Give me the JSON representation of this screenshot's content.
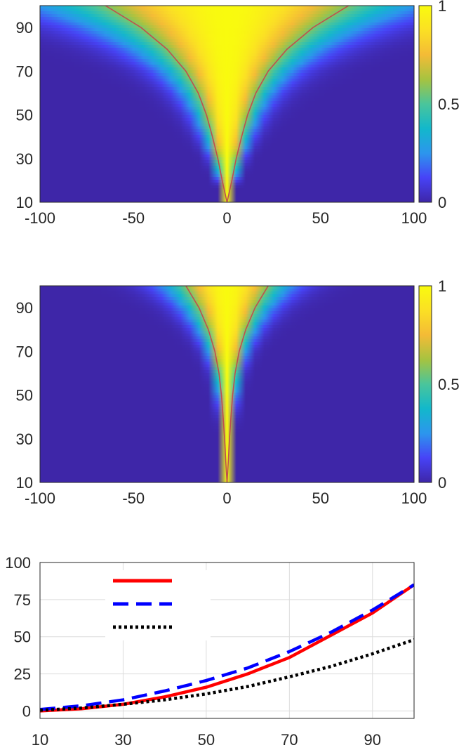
{
  "chart_data": [
    {
      "type": "heatmap",
      "title": "",
      "xlabel": "",
      "ylabel": "",
      "xlim": [
        -100,
        100
      ],
      "ylim": [
        10,
        100
      ],
      "x_ticks": [
        "-100",
        "-50",
        "0",
        "50",
        "100"
      ],
      "y_ticks": [
        "10",
        "30",
        "50",
        "70",
        "90"
      ],
      "colorbar": {
        "range": [
          0,
          1
        ],
        "ticks": [
          "0",
          "0.5",
          "1"
        ]
      },
      "colormap": [
        "#3e26a8",
        "#4743f7",
        "#2c96ed",
        "#12b8cb",
        "#4ac59b",
        "#a6c340",
        "#f4bb36",
        "#fbe024",
        "#f9fb0e"
      ],
      "contour_color": "#c0504d",
      "contour": {
        "y": [
          10,
          20,
          30,
          40,
          50,
          60,
          70,
          80,
          90,
          100
        ],
        "half_width": [
          0,
          2.6,
          4.9,
          7.8,
          11,
          15.4,
          22,
          32,
          46,
          65
        ]
      },
      "field_halfwidth_scale": 1.0
    },
    {
      "type": "heatmap",
      "title": "",
      "xlabel": "",
      "ylabel": "",
      "xlim": [
        -100,
        100
      ],
      "ylim": [
        10,
        100
      ],
      "x_ticks": [
        "-100",
        "-50",
        "0",
        "50",
        "100"
      ],
      "y_ticks": [
        "10",
        "30",
        "50",
        "70",
        "90"
      ],
      "colorbar": {
        "range": [
          0,
          1
        ],
        "ticks": [
          "0",
          "0.5",
          "1"
        ]
      },
      "colormap": [
        "#3e26a8",
        "#4743f7",
        "#2c96ed",
        "#12b8cb",
        "#4ac59b",
        "#a6c340",
        "#f4bb36",
        "#fbe024",
        "#f9fb0e"
      ],
      "contour_color": "#c0504d",
      "contour": {
        "y": [
          10,
          20,
          30,
          40,
          50,
          60,
          70,
          80,
          90,
          100
        ],
        "half_width": [
          0,
          0.7,
          1.3,
          2.1,
          3,
          4.3,
          6.5,
          10,
          15,
          22
        ]
      },
      "field_halfwidth_scale": 1.0
    },
    {
      "type": "line",
      "title": "",
      "xlabel": "",
      "ylabel": "",
      "xlim": [
        10,
        100
      ],
      "ylim": [
        -5,
        100
      ],
      "x_ticks": [
        10,
        30,
        50,
        70,
        90
      ],
      "y_ticks": [
        0,
        25,
        50,
        75,
        100
      ],
      "grid": true,
      "legend": "top-left",
      "x": [
        10,
        20,
        30,
        40,
        50,
        60,
        70,
        80,
        90,
        100
      ],
      "series": [
        {
          "style": "solid",
          "color": "#ff0000",
          "values": [
            0,
            1.5,
            4.5,
            9.5,
            16,
            25,
            36,
            51,
            66,
            85
          ]
        },
        {
          "style": "dashed",
          "color": "#0000ff",
          "values": [
            1,
            3.5,
            7.5,
            13.5,
            20.5,
            29,
            40,
            53,
            68,
            85
          ]
        },
        {
          "style": "dotted",
          "color": "#000000",
          "values": [
            0.5,
            2,
            4.5,
            7.5,
            11.5,
            16.5,
            23,
            30,
            38.5,
            48
          ]
        }
      ]
    }
  ]
}
